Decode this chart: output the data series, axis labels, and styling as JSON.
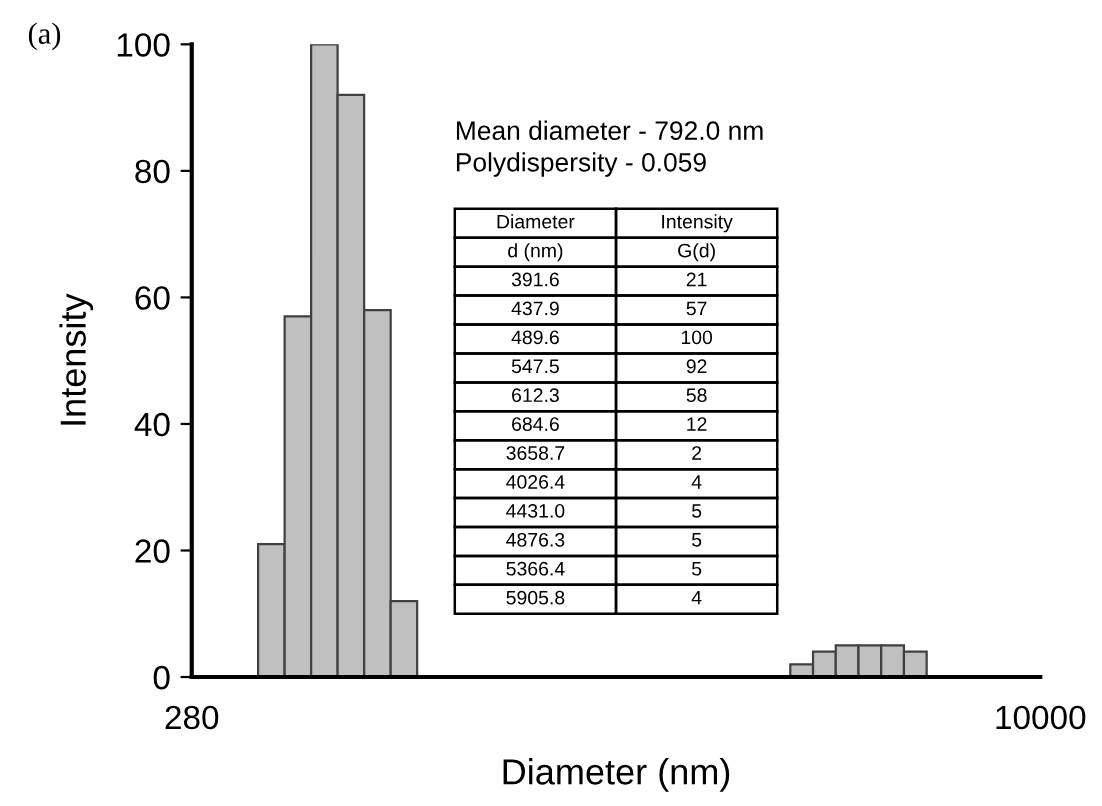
{
  "chart_data": {
    "type": "bar",
    "x": [
      391.6,
      437.9,
      489.6,
      547.5,
      612.3,
      684.6,
      3658.7,
      4026.4,
      4431.0,
      4876.3,
      5366.4,
      5905.8
    ],
    "values": [
      21,
      57,
      100,
      92,
      58,
      12,
      2,
      4,
      5,
      5,
      5,
      4
    ],
    "color": "#c0c0c0",
    "xlabel": "Diameter (nm)",
    "ylabel": "Intensity",
    "log": "x",
    "xlim": [
      280,
      10000
    ],
    "xticks": [
      280,
      10000
    ],
    "ylim": [
      0,
      100
    ],
    "yticks": [
      0,
      20,
      40,
      60,
      80,
      100
    ],
    "annotations": [
      "(a)",
      "Mean diameter - 792.0 nm",
      "Polydispersity - 0.059",
      "Diameter",
      "Intensity",
      "d (nm)",
      "G(d)",
      "391.6",
      "21",
      "437.9",
      "57",
      "489.6",
      "100",
      "547.5",
      "92",
      "612.3",
      "58",
      "684.6",
      "12",
      "3658.7",
      "2",
      "4026.4",
      "4",
      "4431.0",
      "5",
      "4876.3",
      "5",
      "5366.4",
      "5",
      "5905.8",
      "4"
    ]
  }
}
